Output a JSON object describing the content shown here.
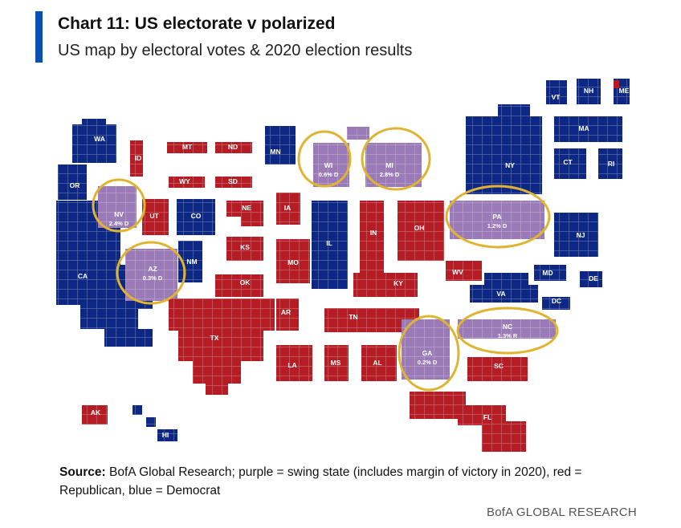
{
  "header": {
    "title": "Chart 11: US electorate v polarized",
    "subtitle": "US map by electoral votes & 2020 election results"
  },
  "colors": {
    "accent_bar": "#0b4fb3",
    "republican": "#b51c24",
    "democrat": "#0c2884",
    "swing": "#9b7ab8",
    "swing_circle": "#e0b330",
    "label": "#ffffff"
  },
  "chart_data": {
    "type": "tile-cartogram",
    "title": "Chart 11: US electorate v polarized",
    "subtitle": "US map by electoral votes & 2020 election results",
    "legend": {
      "purple": "swing state (includes margin of victory in 2020)",
      "red": "Republican",
      "blue": "Democrat"
    },
    "states": [
      {
        "abbr": "WA",
        "result": "D"
      },
      {
        "abbr": "OR",
        "result": "D"
      },
      {
        "abbr": "CA",
        "result": "D"
      },
      {
        "abbr": "NV",
        "result": "swing",
        "margin": "2.4% D"
      },
      {
        "abbr": "ID",
        "result": "R"
      },
      {
        "abbr": "MT",
        "result": "R"
      },
      {
        "abbr": "WY",
        "result": "R"
      },
      {
        "abbr": "UT",
        "result": "R"
      },
      {
        "abbr": "CO",
        "result": "D"
      },
      {
        "abbr": "AZ",
        "result": "swing",
        "margin": "0.3% D"
      },
      {
        "abbr": "NM",
        "result": "D"
      },
      {
        "abbr": "ND",
        "result": "R"
      },
      {
        "abbr": "SD",
        "result": "R"
      },
      {
        "abbr": "NE",
        "result": "R"
      },
      {
        "abbr": "KS",
        "result": "R"
      },
      {
        "abbr": "OK",
        "result": "R"
      },
      {
        "abbr": "TX",
        "result": "R"
      },
      {
        "abbr": "MN",
        "result": "D"
      },
      {
        "abbr": "IA",
        "result": "R"
      },
      {
        "abbr": "MO",
        "result": "R"
      },
      {
        "abbr": "AR",
        "result": "R"
      },
      {
        "abbr": "LA",
        "result": "R"
      },
      {
        "abbr": "WI",
        "result": "swing",
        "margin": "0.6% D"
      },
      {
        "abbr": "IL",
        "result": "D"
      },
      {
        "abbr": "MI",
        "result": "swing",
        "margin": "2.8% D"
      },
      {
        "abbr": "IN",
        "result": "R"
      },
      {
        "abbr": "OH",
        "result": "R"
      },
      {
        "abbr": "KY",
        "result": "R"
      },
      {
        "abbr": "TN",
        "result": "R"
      },
      {
        "abbr": "MS",
        "result": "R"
      },
      {
        "abbr": "AL",
        "result": "R"
      },
      {
        "abbr": "GA",
        "result": "swing",
        "margin": "0.2% D"
      },
      {
        "abbr": "FL",
        "result": "R"
      },
      {
        "abbr": "SC",
        "result": "R"
      },
      {
        "abbr": "NC",
        "result": "swing",
        "margin": "1.3% R"
      },
      {
        "abbr": "VA",
        "result": "D"
      },
      {
        "abbr": "WV",
        "result": "R"
      },
      {
        "abbr": "PA",
        "result": "swing",
        "margin": "1.2% D"
      },
      {
        "abbr": "NY",
        "result": "D"
      },
      {
        "abbr": "NJ",
        "result": "D"
      },
      {
        "abbr": "MD",
        "result": "D"
      },
      {
        "abbr": "DE",
        "result": "D"
      },
      {
        "abbr": "DC",
        "result": "D"
      },
      {
        "abbr": "CT",
        "result": "D"
      },
      {
        "abbr": "RI",
        "result": "D"
      },
      {
        "abbr": "MA",
        "result": "D"
      },
      {
        "abbr": "VT",
        "result": "D"
      },
      {
        "abbr": "NH",
        "result": "D"
      },
      {
        "abbr": "ME",
        "result": "D"
      },
      {
        "abbr": "AK",
        "result": "R"
      },
      {
        "abbr": "HI",
        "result": "D"
      }
    ]
  },
  "source": {
    "label": "Source:",
    "text": " BofA Global Research; purple = swing state (includes margin of victory in 2020), red = Republican, blue = Democrat"
  },
  "footer": {
    "brand": "BofA GLOBAL RESEARCH"
  }
}
